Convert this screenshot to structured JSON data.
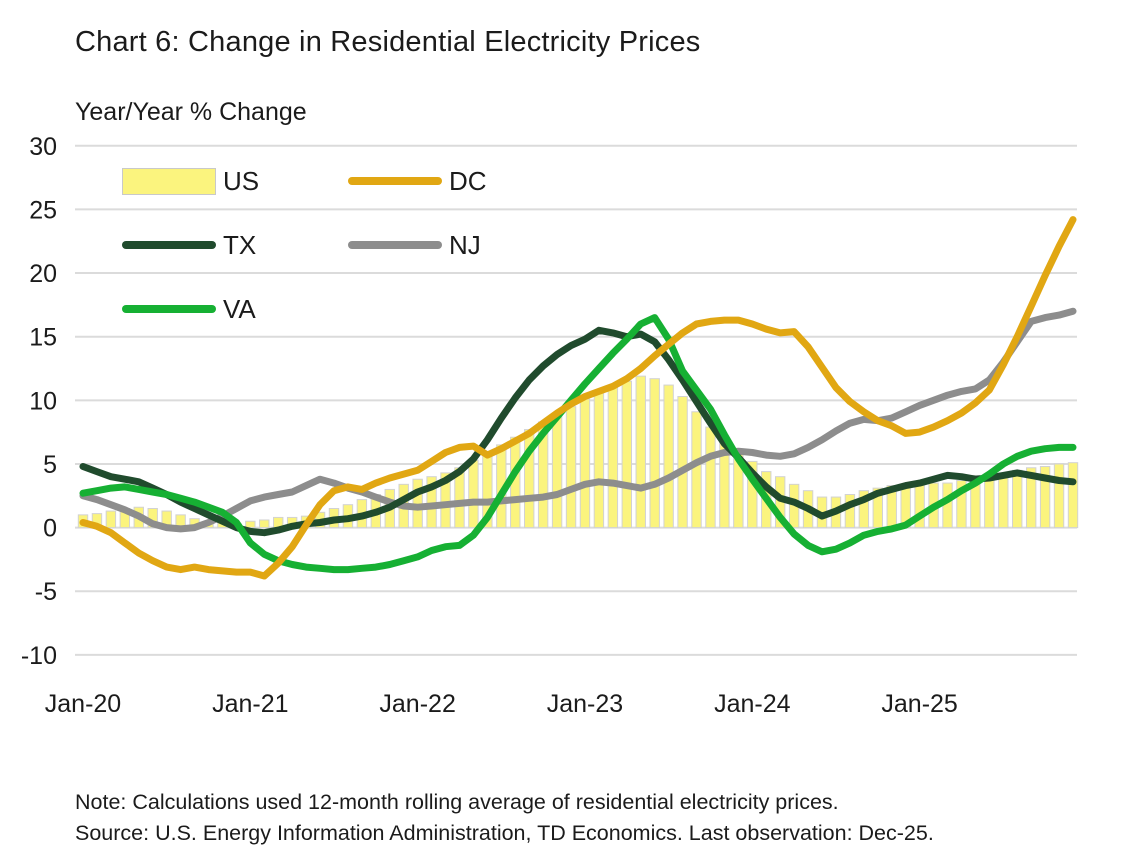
{
  "title": "Chart 6: Change in Residential Electricity Prices",
  "subtitle": "Year/Year % Change",
  "colors": {
    "us_fill": "#FBF47E",
    "us_border": "#D2D2D2",
    "dc": "#E1A713",
    "tx": "#204B2D",
    "nj": "#8D8D8D",
    "va": "#16B033",
    "grid": "#DBDBDB",
    "text": "#1B1B1B"
  },
  "legend": {
    "items": [
      {
        "id": "us",
        "label": "US"
      },
      {
        "id": "dc",
        "label": "DC"
      },
      {
        "id": "tx",
        "label": "TX"
      },
      {
        "id": "nj",
        "label": "NJ"
      },
      {
        "id": "va",
        "label": "VA"
      }
    ]
  },
  "notes": {
    "note": "Note: Calculations used 12-month rolling average of residential electricity prices.",
    "source": "Source: U.S. Energy Information Administration, TD Economics. Last observation: Dec-25."
  },
  "chart_data": {
    "type": "mixed-bar-line",
    "frequency": "monthly",
    "x_start": "Jan-20",
    "x_end": "Dec-25",
    "n_points": 72,
    "x_tick_labels": [
      "Jan-20",
      "Jan-21",
      "Jan-22",
      "Jan-23",
      "Jan-24",
      "Jan-25"
    ],
    "x_tick_month_index": [
      0,
      12,
      24,
      36,
      48,
      60
    ],
    "ylabel": "Year/Year % Change",
    "ylim": [
      -10,
      30
    ],
    "ytick_step": 5,
    "grid": "horizontal-only",
    "legend_position": "top-left-inside",
    "series": [
      {
        "name": "US",
        "type": "bar",
        "color": "#FBF47E",
        "border": "#D2D2D2",
        "values": [
          1.0,
          1.1,
          1.3,
          1.5,
          1.6,
          1.5,
          1.3,
          1.0,
          0.7,
          0.5,
          0.4,
          0.3,
          0.5,
          0.6,
          0.8,
          0.8,
          0.9,
          1.2,
          1.5,
          1.8,
          2.2,
          2.6,
          3.0,
          3.4,
          3.8,
          4.0,
          4.3,
          4.7,
          5.3,
          5.8,
          6.5,
          7.1,
          7.7,
          8.3,
          8.9,
          9.5,
          10.1,
          10.6,
          11.0,
          11.5,
          11.9,
          11.7,
          11.2,
          10.3,
          9.1,
          7.9,
          6.7,
          5.9,
          5.2,
          4.4,
          4.0,
          3.4,
          2.9,
          2.4,
          2.4,
          2.6,
          2.9,
          3.1,
          3.3,
          3.4,
          3.4,
          3.5,
          3.5,
          3.7,
          4.1,
          4.2,
          4.3,
          4.5,
          4.7,
          4.8,
          5.0,
          5.1
        ]
      },
      {
        "name": "TX",
        "type": "line",
        "color": "#204B2D",
        "values": [
          4.8,
          4.4,
          4.0,
          3.8,
          3.6,
          3.1,
          2.6,
          2.0,
          1.5,
          1.0,
          0.5,
          0.0,
          -0.3,
          -0.4,
          -0.2,
          0.1,
          0.3,
          0.4,
          0.6,
          0.7,
          0.9,
          1.2,
          1.6,
          2.2,
          2.8,
          3.2,
          3.7,
          4.4,
          5.4,
          6.9,
          8.6,
          10.2,
          11.6,
          12.7,
          13.6,
          14.3,
          14.8,
          15.5,
          15.3,
          15.0,
          15.2,
          14.6,
          13.2,
          11.6,
          9.9,
          8.2,
          6.6,
          5.5,
          4.3,
          3.2,
          2.3,
          2.0,
          1.5,
          0.9,
          1.3,
          1.8,
          2.2,
          2.7,
          3.0,
          3.3,
          3.5,
          3.8,
          4.1,
          4.0,
          3.8,
          3.9,
          4.1,
          4.3,
          4.1,
          3.9,
          3.7,
          3.6
        ]
      },
      {
        "name": "NJ",
        "type": "line",
        "color": "#8D8D8D",
        "values": [
          2.5,
          2.2,
          1.8,
          1.4,
          0.9,
          0.3,
          0.0,
          -0.1,
          0.0,
          0.4,
          0.9,
          1.5,
          2.1,
          2.4,
          2.6,
          2.8,
          3.3,
          3.8,
          3.5,
          3.1,
          2.8,
          2.4,
          2.0,
          1.7,
          1.6,
          1.7,
          1.8,
          1.9,
          2.0,
          2.0,
          2.1,
          2.2,
          2.3,
          2.4,
          2.6,
          3.0,
          3.4,
          3.6,
          3.5,
          3.3,
          3.1,
          3.4,
          3.9,
          4.5,
          5.1,
          5.6,
          5.9,
          6.0,
          5.9,
          5.7,
          5.6,
          5.8,
          6.3,
          6.9,
          7.6,
          8.2,
          8.5,
          8.4,
          8.6,
          9.1,
          9.6,
          10.0,
          10.4,
          10.7,
          10.9,
          11.6,
          13.0,
          14.6,
          16.2,
          16.5,
          16.7,
          17.0
        ]
      },
      {
        "name": "VA",
        "type": "line",
        "color": "#16B033",
        "values": [
          2.7,
          2.9,
          3.1,
          3.2,
          3.0,
          2.8,
          2.6,
          2.3,
          2.0,
          1.6,
          1.2,
          0.4,
          -1.2,
          -2.1,
          -2.6,
          -2.9,
          -3.1,
          -3.2,
          -3.3,
          -3.3,
          -3.2,
          -3.1,
          -2.9,
          -2.6,
          -2.3,
          -1.8,
          -1.5,
          -1.4,
          -0.6,
          0.8,
          2.6,
          4.4,
          6.0,
          7.4,
          8.7,
          10.0,
          11.3,
          12.5,
          13.7,
          14.8,
          16.0,
          16.5,
          14.8,
          12.3,
          10.8,
          9.3,
          7.3,
          5.4,
          3.8,
          2.3,
          0.8,
          -0.5,
          -1.4,
          -1.9,
          -1.7,
          -1.2,
          -0.6,
          -0.3,
          -0.1,
          0.2,
          0.9,
          1.6,
          2.2,
          2.9,
          3.5,
          4.2,
          5.0,
          5.6,
          6.0,
          6.2,
          6.3,
          6.3
        ]
      },
      {
        "name": "DC",
        "type": "line",
        "color": "#E1A713",
        "values": [
          0.4,
          0.1,
          -0.4,
          -1.2,
          -2.0,
          -2.6,
          -3.1,
          -3.3,
          -3.1,
          -3.3,
          -3.4,
          -3.5,
          -3.5,
          -3.8,
          -2.8,
          -1.5,
          0.2,
          1.8,
          2.9,
          3.2,
          3.0,
          3.5,
          3.9,
          4.2,
          4.5,
          5.2,
          5.9,
          6.3,
          6.4,
          5.7,
          6.2,
          6.8,
          7.4,
          8.2,
          9.0,
          9.7,
          10.3,
          10.7,
          11.1,
          11.7,
          12.5,
          13.5,
          14.4,
          15.3,
          16.0,
          16.2,
          16.3,
          16.3,
          16.0,
          15.6,
          15.3,
          15.4,
          14.2,
          12.6,
          11.0,
          9.9,
          9.1,
          8.4,
          8.0,
          7.4,
          7.5,
          7.9,
          8.4,
          9.0,
          9.8,
          10.8,
          12.8,
          15.0,
          17.4,
          19.8,
          22.1,
          24.2
        ]
      }
    ]
  }
}
